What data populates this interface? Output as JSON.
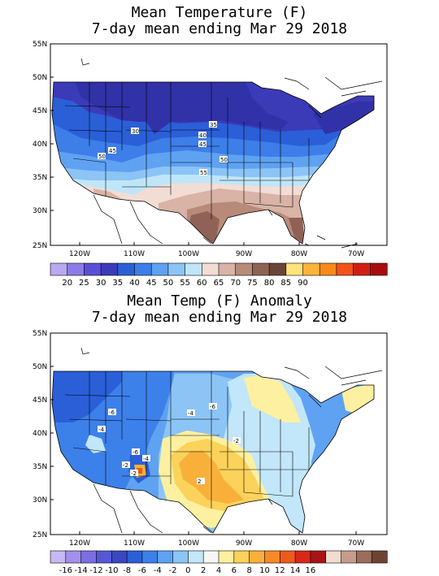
{
  "panels": [
    {
      "title_line1": "Mean Temperature (F)",
      "title_line2": "7-day mean ending Mar 29 2018",
      "lat_labels": [
        "55N",
        "50N",
        "45N",
        "40N",
        "35N",
        "30N",
        "25N"
      ],
      "lon_labels": [
        "120W",
        "110W",
        "100W",
        "90W",
        "80W",
        "70W"
      ],
      "colorbar": {
        "colors": [
          "#b9a9f0",
          "#8c7ce6",
          "#5a4fd6",
          "#3b3bb8",
          "#2a5fd8",
          "#3d7ee8",
          "#5fa2f2",
          "#8cc4f6",
          "#bfe6f8",
          "#f2ddd5",
          "#d8b3a6",
          "#b88a7a",
          "#8f6255",
          "#6a4538",
          "#fde37a",
          "#fbb43a",
          "#f88a1c",
          "#f0521a",
          "#cf1f15",
          "#a80c0c"
        ],
        "labels": [
          "20",
          "25",
          "30",
          "35",
          "40",
          "45",
          "50",
          "55",
          "60",
          "65",
          "70",
          "75",
          "80",
          "85",
          "90"
        ]
      },
      "contour_labels": [
        "30",
        "35",
        "40",
        "45",
        "45",
        "50",
        "50",
        "55"
      ]
    },
    {
      "title_line1": "Mean Temp (F) Anomaly",
      "title_line2": "7-day mean ending Mar 29 2018",
      "lat_labels": [
        "55N",
        "50N",
        "45N",
        "40N",
        "35N",
        "30N",
        "25N"
      ],
      "lon_labels": [
        "120W",
        "110W",
        "100W",
        "90W",
        "80W",
        "70W"
      ],
      "colorbar": {
        "colors": [
          "#c8b8f2",
          "#a290ec",
          "#7c6ee2",
          "#5558d6",
          "#3a47c4",
          "#2a5fd8",
          "#3c80ea",
          "#5fa2f2",
          "#8cc4f6",
          "#c2e6fa",
          "#f6f6f6",
          "#fdf0a0",
          "#fbd25a",
          "#f9b03a",
          "#f68a28",
          "#ef5a1a",
          "#d8281a",
          "#a81414",
          "#f0dcd0",
          "#c89c8c",
          "#9c6c5c",
          "#6c4434"
        ],
        "labels": [
          "-16",
          "-14",
          "-12",
          "-10",
          "-8",
          "-6",
          "-4",
          "-2",
          "0",
          "2",
          "4",
          "6",
          "8",
          "10",
          "12",
          "14",
          "16"
        ]
      },
      "contour_labels": [
        "-6",
        "-4",
        "-6",
        "-4",
        "-2",
        "-6",
        "-4",
        "-2",
        "-2",
        "2"
      ]
    }
  ]
}
